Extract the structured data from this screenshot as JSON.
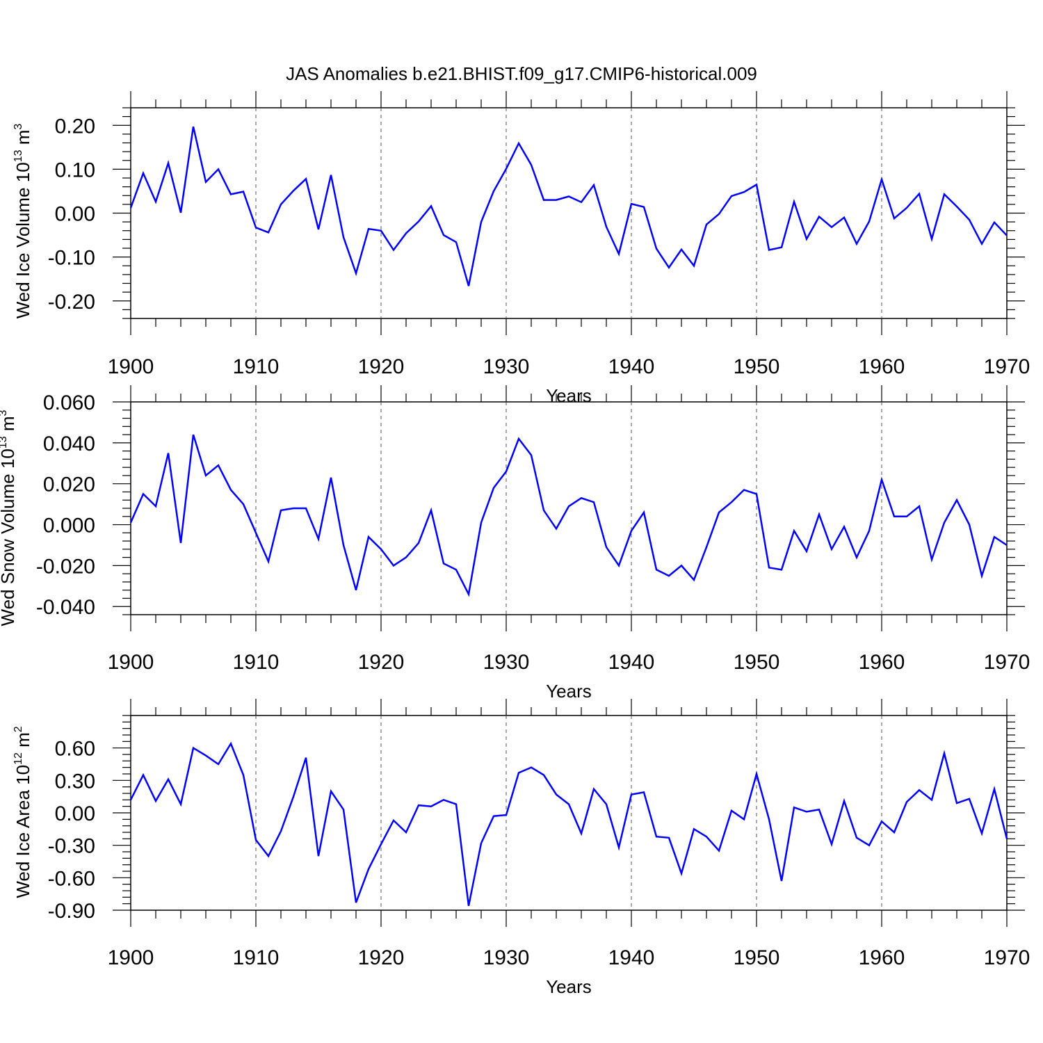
{
  "title": "JAS Anomalies b.e21.BHIST.f09_g17.CMIP6-historical.009",
  "line_color": "#0000ff",
  "chart_data": [
    {
      "type": "line",
      "ylabel_main": "Wed Ice Volume 10",
      "ylabel_exp": "13",
      "ylabel_unit": " m",
      "ylabel_unit_exp": "3",
      "xlabel": "Years",
      "xlim": [
        1900,
        1970
      ],
      "ylim": [
        -0.24,
        0.24
      ],
      "yticks": [
        0.2,
        0.1,
        0.0,
        -0.1,
        -0.2
      ],
      "ytick_labels": [
        "0.20",
        "0.10",
        "0.00",
        "-0.10",
        "-0.20"
      ],
      "xticks": [
        1900,
        1910,
        1920,
        1930,
        1940,
        1950,
        1960,
        1970
      ],
      "xtick_labels": [
        "1900",
        "1910",
        "1920",
        "1930",
        "1940",
        "1950",
        "1960",
        "1970"
      ],
      "grid": "vertical dashed at decades",
      "series": [
        {
          "name": "Wed Ice Volume",
          "x": [
            1900,
            1901,
            1902,
            1903,
            1904,
            1905,
            1906,
            1907,
            1908,
            1909,
            1910,
            1911,
            1912,
            1913,
            1914,
            1915,
            1916,
            1917,
            1918,
            1919,
            1920,
            1921,
            1922,
            1923,
            1924,
            1925,
            1926,
            1927,
            1928,
            1929,
            1930,
            1931,
            1932,
            1933,
            1934,
            1935,
            1936,
            1937,
            1938,
            1939,
            1940,
            1941,
            1942,
            1943,
            1944,
            1945,
            1946,
            1947,
            1948,
            1949,
            1950,
            1951,
            1952,
            1953,
            1954,
            1955,
            1956,
            1957,
            1958,
            1959,
            1960,
            1961,
            1962,
            1963,
            1964,
            1965,
            1966,
            1967,
            1968,
            1969,
            1970
          ],
          "values": [
            0.012,
            0.091,
            0.026,
            0.114,
            0.001,
            0.197,
            0.071,
            0.1,
            0.043,
            0.049,
            -0.033,
            -0.044,
            0.02,
            0.051,
            0.078,
            -0.037,
            0.087,
            -0.055,
            -0.137,
            -0.036,
            -0.04,
            -0.084,
            -0.046,
            -0.019,
            0.016,
            -0.05,
            -0.066,
            -0.166,
            -0.02,
            0.05,
            0.101,
            0.159,
            0.11,
            0.03,
            0.03,
            0.038,
            0.025,
            0.064,
            -0.031,
            -0.093,
            0.021,
            0.014,
            -0.081,
            -0.124,
            -0.083,
            -0.12,
            -0.026,
            -0.002,
            0.039,
            0.048,
            0.065,
            -0.084,
            -0.078,
            0.026,
            -0.059,
            -0.008,
            -0.032,
            -0.01,
            -0.07,
            -0.019,
            0.077,
            -0.012,
            0.012,
            0.044,
            -0.059,
            0.043,
            0.015,
            -0.015,
            -0.07,
            -0.021,
            -0.051
          ]
        }
      ]
    },
    {
      "type": "line",
      "ylabel_main": "Wed Snow Volume 10",
      "ylabel_exp": "13",
      "ylabel_unit": " m",
      "ylabel_unit_exp": "3",
      "xlabel": "Years",
      "xlim": [
        1900,
        1970
      ],
      "ylim": [
        -0.044,
        0.06
      ],
      "yticks": [
        0.06,
        0.04,
        0.02,
        0.0,
        -0.02,
        -0.04
      ],
      "ytick_labels": [
        "0.060",
        "0.040",
        "0.020",
        "0.000",
        "-0.020",
        "-0.040"
      ],
      "xticks": [
        1900,
        1910,
        1920,
        1930,
        1940,
        1950,
        1960,
        1970
      ],
      "xtick_labels": [
        "1900",
        "1910",
        "1920",
        "1930",
        "1940",
        "1950",
        "1960",
        "1970"
      ],
      "grid": "vertical dashed at decades",
      "series": [
        {
          "name": "Wed Snow Volume",
          "x": [
            1900,
            1901,
            1902,
            1903,
            1904,
            1905,
            1906,
            1907,
            1908,
            1909,
            1910,
            1911,
            1912,
            1913,
            1914,
            1915,
            1916,
            1917,
            1918,
            1919,
            1920,
            1921,
            1922,
            1923,
            1924,
            1925,
            1926,
            1927,
            1928,
            1929,
            1930,
            1931,
            1932,
            1933,
            1934,
            1935,
            1936,
            1937,
            1938,
            1939,
            1940,
            1941,
            1942,
            1943,
            1944,
            1945,
            1946,
            1947,
            1948,
            1949,
            1950,
            1951,
            1952,
            1953,
            1954,
            1955,
            1956,
            1957,
            1958,
            1959,
            1960,
            1961,
            1962,
            1963,
            1964,
            1965,
            1966,
            1967,
            1968,
            1969,
            1970
          ],
          "values": [
            0.001,
            0.015,
            0.009,
            0.035,
            -0.009,
            0.044,
            0.024,
            0.029,
            0.017,
            0.01,
            -0.004,
            -0.018,
            0.007,
            0.008,
            0.008,
            -0.007,
            0.023,
            -0.01,
            -0.032,
            -0.006,
            -0.012,
            -0.02,
            -0.016,
            -0.009,
            0.007,
            -0.019,
            -0.022,
            -0.034,
            0.001,
            0.018,
            0.026,
            0.042,
            0.034,
            0.007,
            -0.002,
            0.009,
            0.013,
            0.011,
            -0.011,
            -0.02,
            -0.003,
            0.006,
            -0.022,
            -0.025,
            -0.02,
            -0.027,
            -0.011,
            0.006,
            0.011,
            0.017,
            0.015,
            -0.021,
            -0.022,
            -0.003,
            -0.013,
            0.005,
            -0.012,
            -0.001,
            -0.016,
            -0.003,
            0.022,
            0.004,
            0.004,
            0.009,
            -0.017,
            0.001,
            0.012,
            0.0,
            -0.025,
            -0.006,
            -0.01
          ]
        }
      ]
    },
    {
      "type": "line",
      "ylabel_main": "Wed Ice Area 10",
      "ylabel_exp": "12",
      "ylabel_unit": " m",
      "ylabel_unit_exp": "2",
      "xlabel": "Years",
      "xlim": [
        1900,
        1970
      ],
      "ylim": [
        -0.9,
        0.9
      ],
      "yticks": [
        0.6,
        0.3,
        0.0,
        -0.3,
        -0.6,
        -0.9
      ],
      "ytick_labels": [
        "0.60",
        "0.30",
        "0.00",
        "-0.30",
        "-0.60",
        "-0.90"
      ],
      "xticks": [
        1900,
        1910,
        1920,
        1930,
        1940,
        1950,
        1960,
        1970
      ],
      "xtick_labels": [
        "1900",
        "1910",
        "1920",
        "1930",
        "1940",
        "1950",
        "1960",
        "1970"
      ],
      "grid": "vertical dashed at decades",
      "series": [
        {
          "name": "Wed Ice Area",
          "x": [
            1900,
            1901,
            1902,
            1903,
            1904,
            1905,
            1906,
            1907,
            1908,
            1909,
            1910,
            1911,
            1912,
            1913,
            1914,
            1915,
            1916,
            1917,
            1918,
            1919,
            1920,
            1921,
            1922,
            1923,
            1924,
            1925,
            1926,
            1927,
            1928,
            1929,
            1930,
            1931,
            1932,
            1933,
            1934,
            1935,
            1936,
            1937,
            1938,
            1939,
            1940,
            1941,
            1942,
            1943,
            1944,
            1945,
            1946,
            1947,
            1948,
            1949,
            1950,
            1951,
            1952,
            1953,
            1954,
            1955,
            1956,
            1957,
            1958,
            1959,
            1960,
            1961,
            1962,
            1963,
            1964,
            1965,
            1966,
            1967,
            1968,
            1969,
            1970
          ],
          "values": [
            0.12,
            0.35,
            0.11,
            0.31,
            0.08,
            0.6,
            0.53,
            0.45,
            0.64,
            0.35,
            -0.25,
            -0.4,
            -0.17,
            0.15,
            0.51,
            -0.4,
            0.2,
            0.03,
            -0.83,
            -0.52,
            -0.29,
            -0.07,
            -0.18,
            0.07,
            0.06,
            0.12,
            0.08,
            -0.86,
            -0.28,
            -0.03,
            -0.02,
            0.37,
            0.42,
            0.35,
            0.17,
            0.08,
            -0.19,
            0.22,
            0.08,
            -0.32,
            0.17,
            0.19,
            -0.22,
            -0.23,
            -0.56,
            -0.15,
            -0.22,
            -0.35,
            0.02,
            -0.06,
            0.36,
            -0.06,
            -0.63,
            0.05,
            0.01,
            0.03,
            -0.29,
            0.11,
            -0.23,
            -0.3,
            -0.08,
            -0.18,
            0.1,
            0.21,
            0.12,
            0.55,
            0.09,
            0.13,
            -0.19,
            0.22,
            -0.24
          ]
        }
      ]
    }
  ]
}
